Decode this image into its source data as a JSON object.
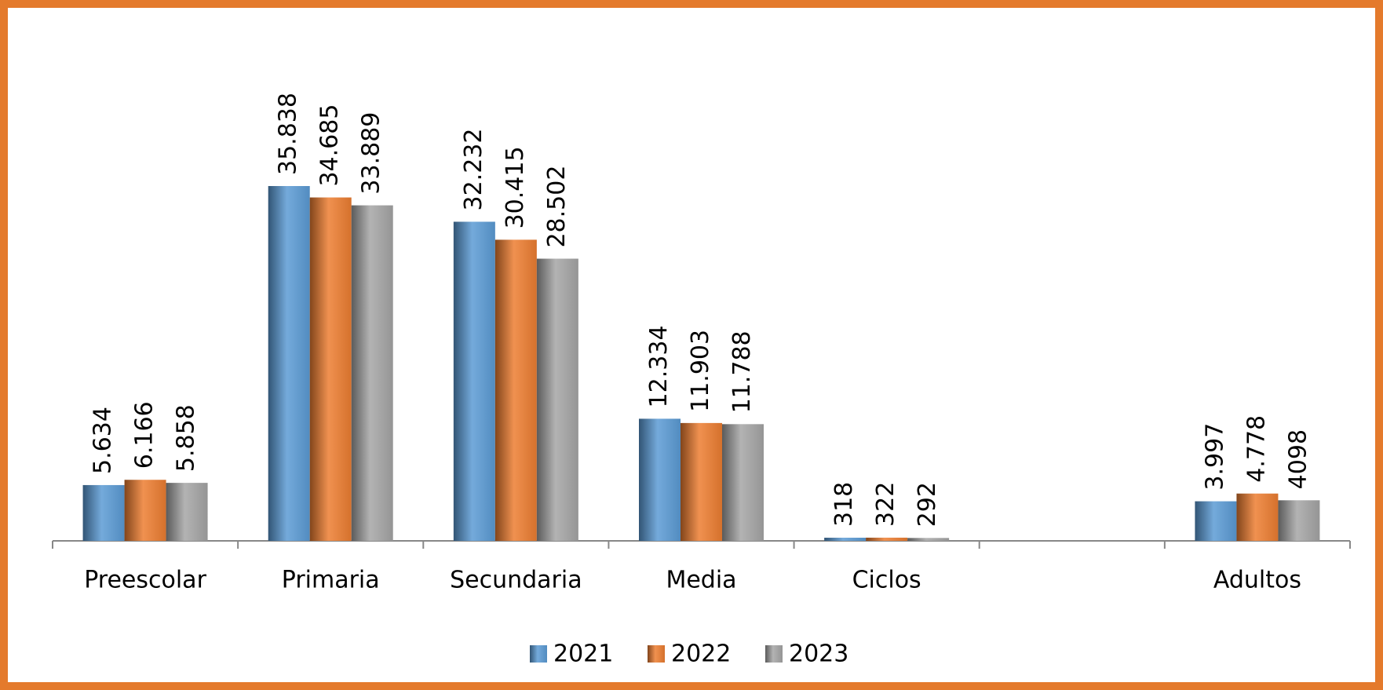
{
  "chart_data": {
    "type": "bar",
    "categories": [
      "Preescolar",
      "Primaria",
      "Secundaria",
      "Media",
      "Ciclos",
      null,
      "Adultos"
    ],
    "series": [
      {
        "name": "2021",
        "color": "#5b9bd5",
        "values": [
          5634,
          35838,
          32232,
          12334,
          318,
          null,
          3997
        ],
        "value_labels": [
          "5.634",
          "35.838",
          "32.232",
          "12.334",
          "318",
          null,
          "3.997"
        ]
      },
      {
        "name": "2022",
        "color": "#ed7d31",
        "values": [
          6166,
          34685,
          30415,
          11903,
          322,
          null,
          4778
        ],
        "value_labels": [
          "6.166",
          "34.685",
          "30.415",
          "11.903",
          "322",
          null,
          "4.778"
        ]
      },
      {
        "name": "2023",
        "color": "#a5a5a5",
        "values": [
          5858,
          33889,
          28502,
          11788,
          292,
          null,
          4098
        ],
        "value_labels": [
          "5.858",
          "33.889",
          "28.502",
          "11.788",
          "292",
          null,
          "4098"
        ]
      }
    ],
    "legend": "bottom"
  }
}
